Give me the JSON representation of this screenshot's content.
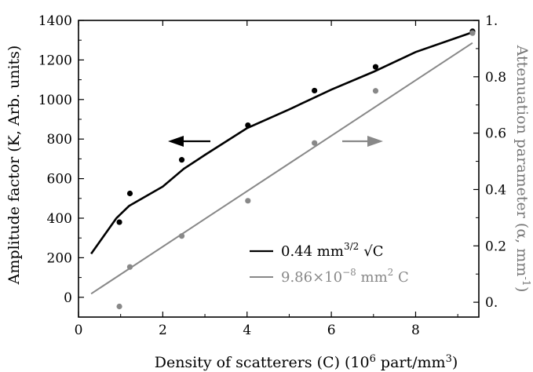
{
  "chart_data": {
    "type": "scatter",
    "xlabel": "Density of scatterers (C) (10",
    "xlabel_sup": "6",
    "xlabel_tail": " part/mm",
    "xlabel_sup2": "3",
    "xlabel_end": ")",
    "ylabel": "Amplitude factor (K, Arb. units)",
    "ylabel_right": "Attenuation parameter (α, mm",
    "ylabel_right_sup": "-1",
    "ylabel_right_end": ")",
    "xlim": [
      0,
      9.5
    ],
    "ylim": [
      -100,
      1400
    ],
    "ylim_right": [
      -0.0526,
      1.0
    ],
    "x_ticks": [
      0,
      2,
      4,
      6,
      8
    ],
    "x_tick_labels": [
      "0",
      "2",
      "4",
      "6",
      "8"
    ],
    "y_ticks": [
      0,
      200,
      400,
      600,
      800,
      1000,
      1200,
      1400
    ],
    "y_tick_labels": [
      "0",
      "200",
      "400",
      "600",
      "800",
      "1000",
      "1200",
      "1400"
    ],
    "y_right_ticks": [
      0,
      0.2,
      0.4,
      0.6,
      0.8,
      1.0
    ],
    "y_right_tick_labels": [
      "0.",
      "0.2",
      "0.4",
      "0.6",
      "0.8",
      "1."
    ],
    "series": [
      {
        "name": "0.44 mm",
        "name_sup": "3/2",
        "name_tail": "√C",
        "axis": "left",
        "color": "#000000",
        "points": [
          [
            0.97,
            380
          ],
          [
            1.22,
            525
          ],
          [
            2.45,
            695
          ],
          [
            4.02,
            870
          ],
          [
            5.6,
            1045
          ],
          [
            7.05,
            1165
          ],
          [
            9.35,
            1345
          ]
        ],
        "fit_x": [
          0.3,
          0.9,
          1.2,
          2.0,
          2.5,
          3.0,
          4.0,
          5.0,
          6.0,
          7.0,
          8.0,
          9.35
        ],
        "fit_y": [
          220,
          400,
          462,
          560,
          650,
          720,
          855,
          950,
          1050,
          1140,
          1240,
          1340
        ]
      },
      {
        "name": "9.86×10",
        "name_sup": "−8",
        "name_tail": " mm",
        "name_sup2": "2",
        "name_end": " C",
        "axis": "right",
        "color": "#888888",
        "points": [
          [
            0.97,
            -0.015
          ],
          [
            1.22,
            0.125
          ],
          [
            2.45,
            0.235
          ],
          [
            4.02,
            0.36
          ],
          [
            5.6,
            0.565
          ],
          [
            7.05,
            0.75
          ],
          [
            9.35,
            0.955
          ]
        ],
        "fit_x": [
          0.3,
          9.35
        ],
        "fit_y": [
          0.03,
          0.92
        ]
      }
    ],
    "legend_placement": "bottom-right",
    "annotations": [
      "arrow-left (black curve uses left axis)",
      "arrow-right (gray line uses right axis)"
    ]
  }
}
